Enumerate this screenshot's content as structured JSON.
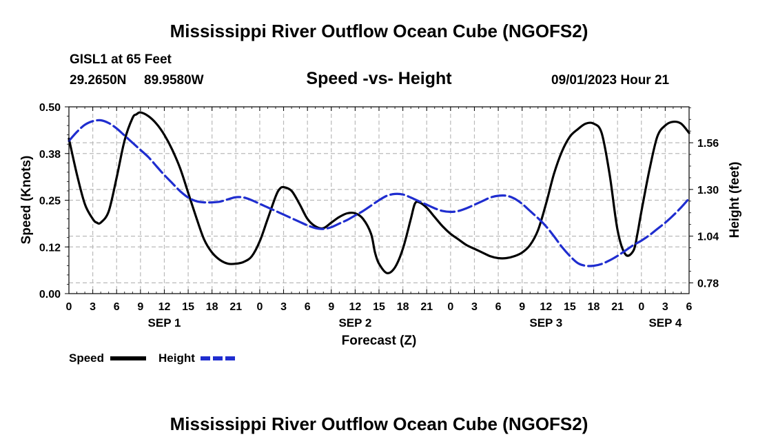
{
  "header": {
    "title": "Mississippi River Outflow Ocean Cube (NGOFS2)",
    "station": "GISL1 at 65 Feet",
    "lat": "29.2650N",
    "lon": "89.9580W",
    "subtitle": "Speed -vs- Height",
    "datetime": "09/01/2023 Hour 21"
  },
  "footer": {
    "title": "Mississippi River Outflow Ocean Cube (NGOFS2)"
  },
  "chart_data": {
    "type": "line",
    "x_label": "Forecast (Z)",
    "x_range": [
      0,
      78
    ],
    "x_tick_step": 3,
    "x_tick_labels": [
      "0",
      "3",
      "6",
      "9",
      "12",
      "15",
      "18",
      "21",
      "0",
      "3",
      "6",
      "9",
      "12",
      "15",
      "18",
      "21",
      "0",
      "3",
      "6",
      "9",
      "12",
      "15",
      "18",
      "21",
      "0",
      "3",
      "6"
    ],
    "date_labels": [
      {
        "label": "SEP 1",
        "x": 12
      },
      {
        "label": "SEP 2",
        "x": 36
      },
      {
        "label": "SEP 3",
        "x": 60
      },
      {
        "label": "SEP 4",
        "x": 75
      }
    ],
    "y_left": {
      "label": "Speed (Knots)",
      "range": [
        0,
        0.5
      ],
      "tick_values": [
        0,
        0.125,
        0.25,
        0.375,
        0.5
      ],
      "tick_labels": [
        "0.00",
        "0.12",
        "0.25",
        "0.38",
        "0.50"
      ]
    },
    "y_right": {
      "label": "Height (feet)",
      "range": [
        0.72,
        1.76
      ],
      "tick_values": [
        0.78,
        1.04,
        1.3,
        1.56
      ],
      "tick_labels": [
        "0.78",
        "1.04",
        "1.30",
        "1.56"
      ]
    },
    "series": [
      {
        "name": "Speed",
        "axis": "left",
        "color": "#000000",
        "dash": "solid",
        "x": [
          0,
          1,
          2,
          3,
          3.5,
          4,
          5,
          6,
          7,
          8,
          8.5,
          9,
          10,
          11,
          12,
          13,
          14,
          15,
          16,
          17,
          18,
          19,
          20,
          21,
          22,
          23,
          24,
          25,
          26,
          26.5,
          27,
          28,
          29,
          30,
          31,
          32,
          33,
          34,
          35,
          36,
          37,
          38,
          38.5,
          39,
          40,
          41,
          42,
          43,
          43.5,
          44,
          45,
          46,
          47,
          48,
          49,
          50,
          51,
          52,
          53,
          54,
          55,
          56,
          57,
          58,
          59,
          60,
          61,
          62,
          63,
          64,
          65,
          66,
          67,
          68,
          69,
          70,
          71,
          71.5,
          72,
          73,
          74,
          75,
          76,
          77,
          78
        ],
        "y": [
          0.415,
          0.32,
          0.24,
          0.2,
          0.19,
          0.19,
          0.22,
          0.31,
          0.41,
          0.47,
          0.48,
          0.485,
          0.475,
          0.455,
          0.425,
          0.385,
          0.335,
          0.27,
          0.205,
          0.145,
          0.11,
          0.09,
          0.08,
          0.08,
          0.085,
          0.1,
          0.14,
          0.2,
          0.26,
          0.28,
          0.285,
          0.275,
          0.24,
          0.2,
          0.18,
          0.175,
          0.19,
          0.205,
          0.215,
          0.215,
          0.2,
          0.16,
          0.11,
          0.08,
          0.055,
          0.07,
          0.12,
          0.2,
          0.24,
          0.245,
          0.23,
          0.205,
          0.18,
          0.16,
          0.145,
          0.13,
          0.12,
          0.11,
          0.1,
          0.095,
          0.095,
          0.1,
          0.11,
          0.13,
          0.17,
          0.24,
          0.32,
          0.38,
          0.42,
          0.44,
          0.455,
          0.455,
          0.43,
          0.32,
          0.17,
          0.105,
          0.115,
          0.16,
          0.22,
          0.33,
          0.42,
          0.45,
          0.46,
          0.455,
          0.43
        ]
      },
      {
        "name": "Height",
        "axis": "right",
        "color": "#1f2dcf",
        "dash": "dashed",
        "x": [
          0,
          1,
          2,
          3,
          4,
          5,
          6,
          7,
          8,
          9,
          10,
          11,
          12,
          13,
          14,
          15,
          16,
          17,
          18,
          19,
          20,
          21,
          22,
          23,
          24,
          25,
          26,
          27,
          28,
          29,
          30,
          31,
          32,
          33,
          34,
          35,
          36,
          37,
          38,
          39,
          40,
          41,
          42,
          43,
          44,
          45,
          46,
          47,
          48,
          49,
          50,
          51,
          52,
          53,
          54,
          55,
          56,
          57,
          58,
          59,
          60,
          61,
          62,
          63,
          64,
          65,
          66,
          67,
          68,
          69,
          70,
          71,
          72,
          73,
          74,
          75,
          76,
          77,
          78
        ],
        "y": [
          1.57,
          1.62,
          1.66,
          1.68,
          1.685,
          1.67,
          1.64,
          1.6,
          1.56,
          1.52,
          1.48,
          1.43,
          1.38,
          1.335,
          1.29,
          1.255,
          1.235,
          1.228,
          1.228,
          1.232,
          1.245,
          1.257,
          1.255,
          1.24,
          1.22,
          1.2,
          1.18,
          1.16,
          1.14,
          1.12,
          1.1,
          1.085,
          1.08,
          1.09,
          1.11,
          1.13,
          1.155,
          1.18,
          1.21,
          1.24,
          1.265,
          1.275,
          1.272,
          1.255,
          1.235,
          1.215,
          1.195,
          1.18,
          1.175,
          1.18,
          1.195,
          1.215,
          1.235,
          1.255,
          1.265,
          1.265,
          1.25,
          1.22,
          1.18,
          1.14,
          1.095,
          1.04,
          0.98,
          0.93,
          0.89,
          0.875,
          0.875,
          0.885,
          0.905,
          0.93,
          0.96,
          0.99,
          1.015,
          1.045,
          1.08,
          1.115,
          1.155,
          1.2,
          1.25
        ]
      }
    ],
    "legend": [
      {
        "label": "Speed",
        "color": "#000000",
        "dash": "solid"
      },
      {
        "label": "Height",
        "color": "#1f2dcf",
        "dash": "dashed"
      }
    ]
  }
}
